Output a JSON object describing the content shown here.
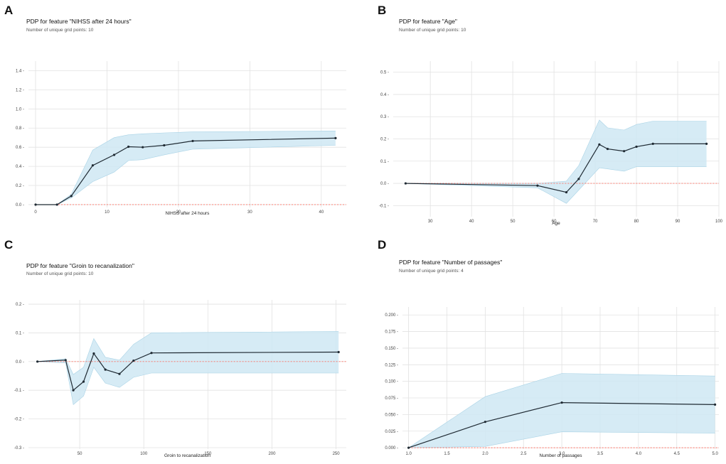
{
  "colors": {
    "band": "#cfe8f3",
    "band_edge": "#a9d3e6",
    "line": "#1f2a33",
    "zero": "#ff6f61",
    "grid": "#e2e2e2"
  },
  "chart_data": [
    {
      "panel": "A",
      "type": "line",
      "title": "PDP for feature \"NIHSS after 24 hours\"",
      "subtitle": "Number of unique grid points: 10",
      "xlabel": "NIHSS after 24 hours",
      "ylabel": "",
      "x": [
        0,
        3,
        5,
        8,
        11,
        13,
        15,
        18,
        22,
        42
      ],
      "y": [
        0.0,
        0.0,
        0.09,
        0.41,
        0.52,
        0.605,
        0.6,
        0.62,
        0.665,
        0.695
      ],
      "upper": [
        0.0,
        0.0,
        0.11,
        0.57,
        0.7,
        0.73,
        0.74,
        0.75,
        0.76,
        0.77
      ],
      "lower": [
        0.0,
        0.0,
        0.07,
        0.24,
        0.34,
        0.46,
        0.47,
        0.52,
        0.58,
        0.62
      ],
      "xlim": [
        -1,
        43.5
      ],
      "ylim": [
        -0.03,
        1.5
      ],
      "xticks": [
        0,
        10,
        20,
        30,
        40
      ],
      "yticks": [
        0.0,
        0.2,
        0.4,
        0.6,
        0.8,
        1.0,
        1.2,
        1.4
      ],
      "ytick_labels": [
        "0.0",
        "0.2",
        "0.4",
        "0.6",
        "0.8",
        "1.0",
        "1.2",
        "1.4"
      ]
    },
    {
      "panel": "B",
      "type": "line",
      "title": "PDP for feature \"Age\"",
      "subtitle": "Number of unique grid points: 10",
      "xlabel": "Age",
      "ylabel": "",
      "x": [
        24,
        56,
        63,
        66,
        71,
        73,
        77,
        80,
        84,
        97
      ],
      "y": [
        0.0,
        -0.01,
        -0.04,
        0.02,
        0.175,
        0.155,
        0.145,
        0.165,
        0.178,
        0.178
      ],
      "upper": [
        0.0,
        0.0,
        0.01,
        0.08,
        0.285,
        0.25,
        0.24,
        0.265,
        0.28,
        0.28
      ],
      "lower": [
        0.0,
        -0.02,
        -0.09,
        -0.03,
        0.07,
        0.065,
        0.055,
        0.075,
        0.075,
        0.075
      ],
      "xlim": [
        21,
        100
      ],
      "ylim": [
        -0.15,
        0.55
      ],
      "xticks": [
        30,
        40,
        50,
        60,
        70,
        80,
        90,
        100
      ],
      "yticks": [
        -0.1,
        0.0,
        0.1,
        0.2,
        0.3,
        0.4,
        0.5
      ],
      "ytick_labels": [
        "-0.1",
        "0.0",
        "0.1",
        "0.2",
        "0.3",
        "0.4",
        "0.5"
      ]
    },
    {
      "panel": "C",
      "type": "line",
      "title": "PDP for feature \"Groin to recanalization\"",
      "subtitle": "Number of unique grid points: 10",
      "xlabel": "Groin to recanalization",
      "ylabel": "",
      "x": [
        17,
        39,
        45,
        53,
        61,
        70,
        81,
        92,
        106,
        252
      ],
      "y": [
        0.0,
        0.005,
        -0.1,
        -0.07,
        0.028,
        -0.028,
        -0.043,
        0.003,
        0.03,
        0.033
      ],
      "upper": [
        0.0,
        0.01,
        -0.045,
        -0.02,
        0.08,
        0.015,
        0.005,
        0.06,
        0.1,
        0.105
      ],
      "lower": [
        0.0,
        -0.005,
        -0.15,
        -0.12,
        -0.02,
        -0.075,
        -0.09,
        -0.055,
        -0.04,
        -0.04
      ],
      "xlim": [
        10,
        258
      ],
      "ylim": [
        -0.305,
        0.215
      ],
      "xticks": [
        50,
        100,
        150,
        200,
        250
      ],
      "yticks": [
        -0.3,
        -0.2,
        -0.1,
        0.0,
        0.1,
        0.2
      ],
      "ytick_labels": [
        "-0.3",
        "-0.2",
        "-0.1",
        "0.0",
        "0.1",
        "0.2"
      ]
    },
    {
      "panel": "D",
      "type": "line",
      "title": "PDP for feature \"Number of passages\"",
      "subtitle": "Number of unique grid points: 4",
      "xlabel": "Number of passages",
      "ylabel": "",
      "x": [
        1.0,
        2.0,
        3.0,
        5.0
      ],
      "y": [
        0.0,
        0.039,
        0.068,
        0.065
      ],
      "upper": [
        0.0,
        0.077,
        0.112,
        0.108
      ],
      "lower": [
        0.0,
        0.002,
        0.024,
        0.022
      ],
      "xlim": [
        0.92,
        5.05
      ],
      "ylim": [
        -0.002,
        0.212
      ],
      "xticks": [
        1.0,
        1.5,
        2.0,
        2.5,
        3.0,
        3.5,
        4.0,
        4.5,
        5.0
      ],
      "yticks": [
        0.0,
        0.025,
        0.05,
        0.075,
        0.1,
        0.125,
        0.15,
        0.175,
        0.2
      ],
      "ytick_labels": [
        "0.000",
        "0.025",
        "0.050",
        "0.075",
        "0.100",
        "0.125",
        "0.150",
        "0.175",
        "0.200"
      ]
    }
  ]
}
